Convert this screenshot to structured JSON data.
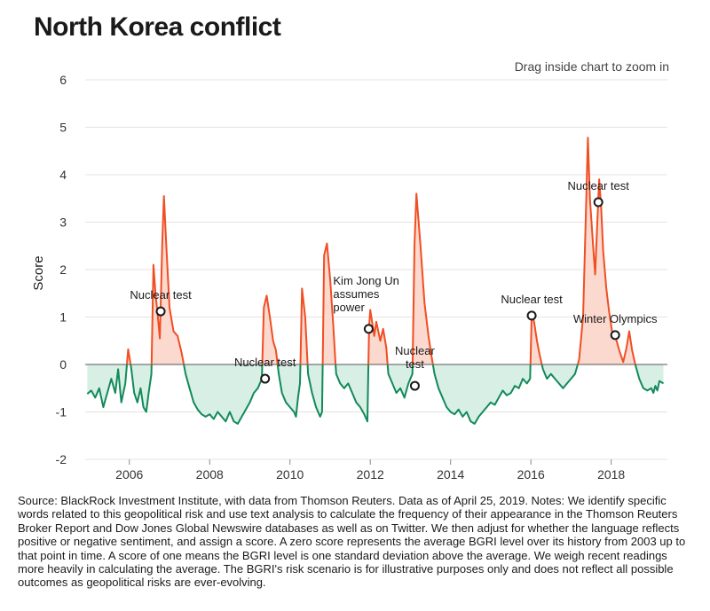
{
  "title": "North Korea conflict",
  "hint": "Drag inside chart to zoom in",
  "source_note": "Source: BlackRock Investment Institute, with data from Thomson Reuters. Data as of April 25, 2019. Notes: We identify specific words related to this geopolitical risk and use text analysis to calculate the frequency of their appearance in the Thomson Reuters Broker Report and Dow Jones Global Newswire databases as well as on Twitter. We then adjust for whether the language reflects positive or negative sentiment, and assign a score. A zero score represents the average BGRI level over its history from 2003 up to that point in time. A score of one means the BGRI level is one standard deviation above the average. We weigh recent readings more heavily in calculating the average. The BGRI's risk scenario is for illustrative purposes only and does not reflect all possible outcomes as geopolitical risks are ever-evolving.",
  "chart_data": {
    "type": "area",
    "ylabel": "Score",
    "xlabel": "",
    "xlim": [
      2004.9,
      2019.4
    ],
    "ylim": [
      -2,
      6
    ],
    "y_ticks": [
      "6",
      "5",
      "4",
      "3",
      "2",
      "1",
      "0",
      "-1",
      "-2"
    ],
    "x_ticks": [
      "2006",
      "2008",
      "2010",
      "2012",
      "2014",
      "2016",
      "2018"
    ],
    "grid": "horizontal",
    "colors": {
      "positive": "#f04e23",
      "positive_fill": "#fcd9cf",
      "negative": "#138a5a",
      "negative_fill": "#d8efe5"
    },
    "series": [
      {
        "points": [
          [
            2004.95,
            -0.62
          ],
          [
            2005.05,
            -0.55
          ],
          [
            2005.15,
            -0.7
          ],
          [
            2005.25,
            -0.5
          ],
          [
            2005.35,
            -0.9
          ],
          [
            2005.45,
            -0.6
          ],
          [
            2005.55,
            -0.3
          ],
          [
            2005.65,
            -0.6
          ],
          [
            2005.72,
            -0.1
          ],
          [
            2005.8,
            -0.8
          ],
          [
            2005.9,
            -0.4
          ],
          [
            2005.97,
            0.32
          ],
          [
            2006.05,
            -0.1
          ],
          [
            2006.12,
            -0.6
          ],
          [
            2006.2,
            -0.8
          ],
          [
            2006.28,
            -0.5
          ],
          [
            2006.35,
            -0.9
          ],
          [
            2006.42,
            -1.0
          ],
          [
            2006.48,
            -0.6
          ],
          [
            2006.55,
            -0.2
          ],
          [
            2006.6,
            2.1
          ],
          [
            2006.65,
            1.5
          ],
          [
            2006.7,
            1.1
          ],
          [
            2006.76,
            0.55
          ],
          [
            2006.82,
            2.6
          ],
          [
            2006.86,
            3.55
          ],
          [
            2006.92,
            2.5
          ],
          [
            2007.0,
            1.2
          ],
          [
            2007.1,
            0.7
          ],
          [
            2007.2,
            0.6
          ],
          [
            2007.3,
            0.25
          ],
          [
            2007.4,
            -0.2
          ],
          [
            2007.5,
            -0.5
          ],
          [
            2007.6,
            -0.8
          ],
          [
            2007.7,
            -0.95
          ],
          [
            2007.8,
            -1.05
          ],
          [
            2007.9,
            -1.1
          ],
          [
            2008.0,
            -1.05
          ],
          [
            2008.1,
            -1.15
          ],
          [
            2008.2,
            -1.0
          ],
          [
            2008.3,
            -1.1
          ],
          [
            2008.4,
            -1.2
          ],
          [
            2008.5,
            -1.0
          ],
          [
            2008.6,
            -1.2
          ],
          [
            2008.7,
            -1.25
          ],
          [
            2008.8,
            -1.1
          ],
          [
            2008.9,
            -0.95
          ],
          [
            2009.0,
            -0.8
          ],
          [
            2009.1,
            -0.6
          ],
          [
            2009.2,
            -0.5
          ],
          [
            2009.3,
            -0.3
          ],
          [
            2009.35,
            1.2
          ],
          [
            2009.42,
            1.45
          ],
          [
            2009.5,
            1.0
          ],
          [
            2009.58,
            0.5
          ],
          [
            2009.65,
            0.3
          ],
          [
            2009.72,
            -0.2
          ],
          [
            2009.8,
            -0.6
          ],
          [
            2009.9,
            -0.8
          ],
          [
            2010.0,
            -0.9
          ],
          [
            2010.1,
            -1.0
          ],
          [
            2010.15,
            -1.1
          ],
          [
            2010.2,
            -0.7
          ],
          [
            2010.25,
            -0.4
          ],
          [
            2010.3,
            1.6
          ],
          [
            2010.38,
            1.0
          ],
          [
            2010.45,
            -0.2
          ],
          [
            2010.55,
            -0.6
          ],
          [
            2010.65,
            -0.9
          ],
          [
            2010.75,
            -1.1
          ],
          [
            2010.8,
            -1.0
          ],
          [
            2010.85,
            2.3
          ],
          [
            2010.92,
            2.55
          ],
          [
            2011.0,
            1.8
          ],
          [
            2011.08,
            0.8
          ],
          [
            2011.15,
            -0.2
          ],
          [
            2011.25,
            -0.4
          ],
          [
            2011.35,
            -0.5
          ],
          [
            2011.45,
            -0.4
          ],
          [
            2011.55,
            -0.6
          ],
          [
            2011.65,
            -0.8
          ],
          [
            2011.75,
            -0.9
          ],
          [
            2011.85,
            -1.05
          ],
          [
            2011.93,
            -1.2
          ],
          [
            2011.97,
            0.8
          ],
          [
            2012.0,
            1.15
          ],
          [
            2012.1,
            0.6
          ],
          [
            2012.15,
            0.9
          ],
          [
            2012.25,
            0.5
          ],
          [
            2012.32,
            0.75
          ],
          [
            2012.4,
            0.35
          ],
          [
            2012.45,
            -0.2
          ],
          [
            2012.55,
            -0.4
          ],
          [
            2012.65,
            -0.6
          ],
          [
            2012.75,
            -0.5
          ],
          [
            2012.85,
            -0.7
          ],
          [
            2012.95,
            -0.4
          ],
          [
            2013.05,
            -0.2
          ],
          [
            2013.1,
            2.5
          ],
          [
            2013.15,
            3.6
          ],
          [
            2013.25,
            2.5
          ],
          [
            2013.35,
            1.3
          ],
          [
            2013.45,
            0.6
          ],
          [
            2013.52,
            0.2
          ],
          [
            2013.6,
            -0.2
          ],
          [
            2013.7,
            -0.5
          ],
          [
            2013.8,
            -0.7
          ],
          [
            2013.9,
            -0.9
          ],
          [
            2014.0,
            -1.0
          ],
          [
            2014.1,
            -1.05
          ],
          [
            2014.2,
            -0.95
          ],
          [
            2014.3,
            -1.1
          ],
          [
            2014.4,
            -1.0
          ],
          [
            2014.5,
            -1.2
          ],
          [
            2014.6,
            -1.25
          ],
          [
            2014.7,
            -1.1
          ],
          [
            2014.8,
            -1.0
          ],
          [
            2014.9,
            -0.9
          ],
          [
            2015.0,
            -0.8
          ],
          [
            2015.1,
            -0.85
          ],
          [
            2015.2,
            -0.7
          ],
          [
            2015.3,
            -0.55
          ],
          [
            2015.4,
            -0.65
          ],
          [
            2015.5,
            -0.6
          ],
          [
            2015.6,
            -0.45
          ],
          [
            2015.7,
            -0.5
          ],
          [
            2015.8,
            -0.3
          ],
          [
            2015.9,
            -0.4
          ],
          [
            2015.98,
            -0.3
          ],
          [
            2016.02,
            1.05
          ],
          [
            2016.08,
            0.9
          ],
          [
            2016.15,
            0.5
          ],
          [
            2016.22,
            0.2
          ],
          [
            2016.3,
            -0.1
          ],
          [
            2016.4,
            -0.3
          ],
          [
            2016.5,
            -0.2
          ],
          [
            2016.6,
            -0.3
          ],
          [
            2016.7,
            -0.4
          ],
          [
            2016.8,
            -0.5
          ],
          [
            2016.9,
            -0.4
          ],
          [
            2017.0,
            -0.3
          ],
          [
            2017.1,
            -0.2
          ],
          [
            2017.2,
            0.1
          ],
          [
            2017.3,
            1.0
          ],
          [
            2017.38,
            3.5
          ],
          [
            2017.42,
            4.78
          ],
          [
            2017.47,
            3.5
          ],
          [
            2017.55,
            2.5
          ],
          [
            2017.6,
            1.9
          ],
          [
            2017.65,
            2.9
          ],
          [
            2017.7,
            3.9
          ],
          [
            2017.75,
            3.3
          ],
          [
            2017.8,
            2.4
          ],
          [
            2017.88,
            1.6
          ],
          [
            2017.95,
            1.1
          ],
          [
            2018.02,
            0.7
          ],
          [
            2018.1,
            0.6
          ],
          [
            2018.2,
            0.3
          ],
          [
            2018.3,
            0.05
          ],
          [
            2018.38,
            0.35
          ],
          [
            2018.45,
            0.7
          ],
          [
            2018.52,
            0.3
          ],
          [
            2018.6,
            0.0
          ],
          [
            2018.7,
            -0.3
          ],
          [
            2018.8,
            -0.5
          ],
          [
            2018.9,
            -0.55
          ],
          [
            2019.0,
            -0.5
          ],
          [
            2019.05,
            -0.6
          ],
          [
            2019.1,
            -0.45
          ],
          [
            2019.15,
            -0.55
          ],
          [
            2019.2,
            -0.35
          ],
          [
            2019.3,
            -0.4
          ]
        ]
      }
    ],
    "annotations": [
      {
        "label": "Nuclear test",
        "x": 2006.78,
        "y": 1.12
      },
      {
        "label": "Nuclear test",
        "x": 2009.38,
        "y": -0.3
      },
      {
        "label": "Kim Jong Un assumes power",
        "x": 2011.96,
        "y": 0.75
      },
      {
        "label": "Nuclear test",
        "x": 2013.11,
        "y": -0.45
      },
      {
        "label": "Nuclear test",
        "x": 2016.02,
        "y": 1.03
      },
      {
        "label": "Nuclear test",
        "x": 2017.68,
        "y": 3.42
      },
      {
        "label": "Winter Olympics",
        "x": 2018.1,
        "y": 0.62
      }
    ]
  }
}
